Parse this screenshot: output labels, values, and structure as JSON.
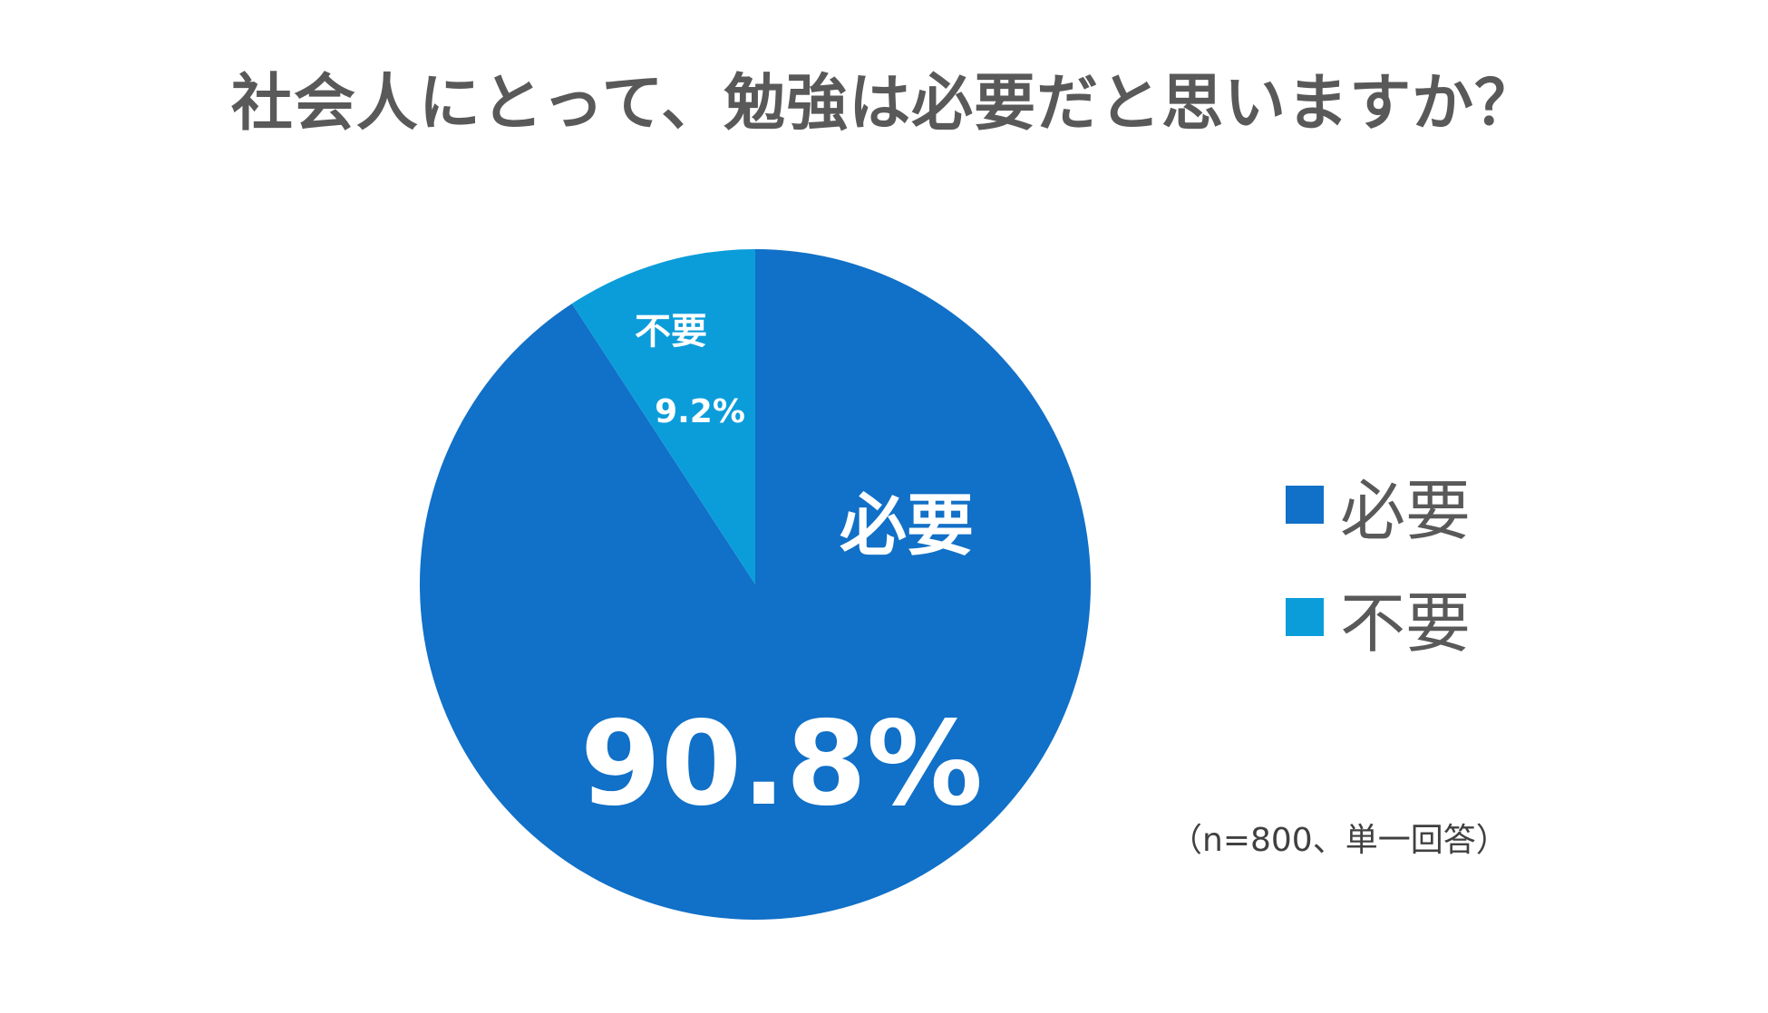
{
  "title": "社会人にとって、勉強は必要だと思いますか？",
  "note": "（n=800、単一回答）",
  "chart_data": {
    "type": "pie",
    "title": "社会人にとって、勉強は必要だと思いますか？",
    "start_angle": "12 o'clock, clockwise",
    "legend_position": "right",
    "slices": [
      {
        "label": "必要",
        "value": 90.8,
        "value_label": "90.8%",
        "color": "#1170C7"
      },
      {
        "label": "不要",
        "value": 9.2,
        "value_label": "9.2%",
        "color": "#0B9DDA"
      }
    ]
  },
  "legend": {
    "items": [
      {
        "label": "必要",
        "color": "#1170C7"
      },
      {
        "label": "不要",
        "color": "#0B9DDA"
      }
    ]
  }
}
